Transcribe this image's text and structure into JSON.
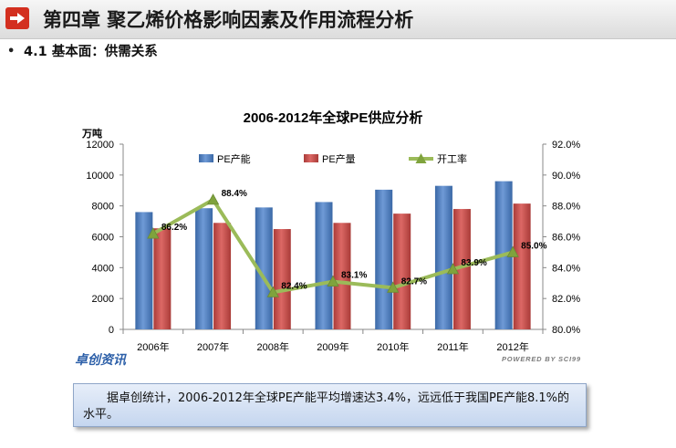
{
  "header": {
    "title": "第四章 聚乙烯价格影响因素及作用流程分析",
    "icon": "arrow-right-icon",
    "accent": "#d32f1f"
  },
  "section": {
    "bullet": "•",
    "title": "4.1 基本面：供需关系"
  },
  "chart_data": {
    "type": "bar",
    "title": "2006-2012年全球PE供应分析",
    "categories": [
      "2006年",
      "2007年",
      "2008年",
      "2009年",
      "2010年",
      "2011年",
      "2012年"
    ],
    "series": [
      {
        "name": "PE产能",
        "type": "bar",
        "axis": "left",
        "color": "#4f81bd",
        "values": [
          7600,
          7850,
          7900,
          8250,
          9050,
          9300,
          9600
        ]
      },
      {
        "name": "PE产量",
        "type": "bar",
        "axis": "left",
        "color": "#c0504d",
        "values": [
          6550,
          6900,
          6500,
          6900,
          7500,
          7800,
          8150
        ]
      },
      {
        "name": "开工率",
        "type": "line",
        "axis": "right",
        "color": "#9bbb59",
        "values": [
          86.2,
          88.4,
          82.4,
          83.1,
          82.7,
          83.9,
          85.0
        ],
        "labels": [
          "86.2%",
          "88.4%",
          "82.4%",
          "83.1%",
          "82.7%",
          "83.9%",
          "85.0%"
        ]
      }
    ],
    "ylabel": "万吨",
    "ylim": [
      0,
      12000
    ],
    "yticks": [
      "0",
      "2000",
      "4000",
      "6000",
      "8000",
      "10000",
      "12000"
    ],
    "y2lim": [
      80,
      92
    ],
    "y2ticks": [
      "80.0%",
      "82.0%",
      "84.0%",
      "86.0%",
      "88.0%",
      "90.0%",
      "92.0%"
    ],
    "legend_position": "top",
    "grid": false,
    "watermark_left": "卓创资讯",
    "watermark_right": "POWERED BY SCI99"
  },
  "caption": {
    "text": "据卓创统计，2006-2012年全球PE产能平均增速达3.4%，远远低于我国PE产能8.1%的水平。"
  }
}
